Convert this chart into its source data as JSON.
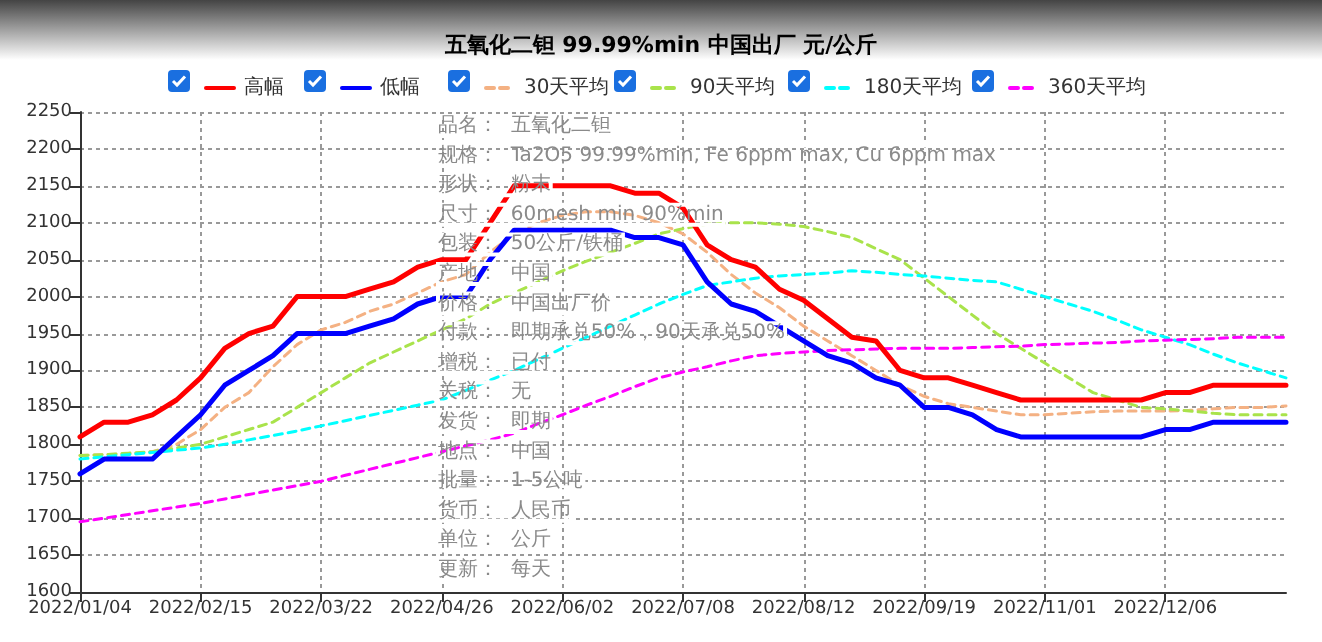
{
  "chart_data": {
    "type": "line",
    "title": "五氧化二钽 99.99%min 中国出厂 元/公斤",
    "categories": [
      "2022/01/04",
      null,
      null,
      null,
      null,
      "2022/02/15",
      null,
      null,
      null,
      null,
      "2022/03/22",
      null,
      null,
      null,
      null,
      "2022/04/26",
      null,
      null,
      null,
      null,
      "2022/06/02",
      null,
      null,
      null,
      null,
      "2022/07/08",
      null,
      null,
      null,
      null,
      "2022/08/12",
      null,
      null,
      null,
      null,
      "2022/09/19",
      null,
      null,
      null,
      null,
      "2022/11/01",
      null,
      null,
      null,
      null,
      "2022/12/06",
      null,
      null,
      null,
      null,
      null
    ],
    "series": [
      {
        "name": "高幅",
        "color": "#ff0000",
        "line_style": "solid",
        "values": [
          1810,
          1830,
          1830,
          1840,
          1860,
          1890,
          1930,
          1950,
          1960,
          2000,
          2000,
          2000,
          2010,
          2020,
          2040,
          2050,
          2050,
          2100,
          2150,
          2150,
          2150,
          2150,
          2150,
          2140,
          2140,
          2120,
          2070,
          2050,
          2040,
          2010,
          1995,
          1970,
          1945,
          1940,
          1900,
          1890,
          1890,
          1880,
          1870,
          1860,
          1860,
          1860,
          1860,
          1860,
          1860,
          1870,
          1870,
          1880,
          1880,
          1880,
          1880
        ]
      },
      {
        "name": "低幅",
        "color": "#0000ff",
        "line_style": "solid",
        "values": [
          1760,
          1780,
          1780,
          1780,
          1810,
          1840,
          1880,
          1900,
          1920,
          1950,
          1950,
          1950,
          1960,
          1970,
          1990,
          2000,
          2000,
          2050,
          2090,
          2090,
          2090,
          2090,
          2090,
          2080,
          2080,
          2070,
          2020,
          1990,
          1980,
          1960,
          1940,
          1920,
          1910,
          1890,
          1880,
          1850,
          1850,
          1840,
          1820,
          1810,
          1810,
          1810,
          1810,
          1810,
          1810,
          1820,
          1820,
          1830,
          1830,
          1830,
          1830
        ]
      },
      {
        "name": "30天平均",
        "color": "#f4b183",
        "line_style": "dashed",
        "values": [
          1785,
          1786,
          1787,
          1790,
          1800,
          1820,
          1850,
          1870,
          1905,
          1935,
          1955,
          1965,
          1980,
          1990,
          2005,
          2020,
          2030,
          2060,
          2085,
          2100,
          2110,
          2115,
          2115,
          2110,
          2100,
          2085,
          2060,
          2030,
          2005,
          1985,
          1960,
          1940,
          1920,
          1900,
          1880,
          1865,
          1855,
          1850,
          1845,
          1840,
          1840,
          1842,
          1844,
          1845,
          1845,
          1845,
          1846,
          1848,
          1850,
          1850,
          1852
        ]
      },
      {
        "name": "90天平均",
        "color": "#a9e34b",
        "line_style": "dashed",
        "values": [
          1785,
          1786,
          1788,
          1790,
          1795,
          1800,
          1810,
          1820,
          1830,
          1850,
          1870,
          1890,
          1910,
          1925,
          1940,
          1955,
          1970,
          1990,
          2005,
          2020,
          2035,
          2048,
          2060,
          2072,
          2085,
          2092,
          2098,
          2100,
          2100,
          2098,
          2095,
          2088,
          2080,
          2065,
          2050,
          2025,
          2000,
          1975,
          1950,
          1930,
          1910,
          1890,
          1870,
          1860,
          1850,
          1848,
          1845,
          1842,
          1840,
          1840,
          1840
        ]
      },
      {
        "name": "180天平均",
        "color": "#00ffff",
        "line_style": "dashed",
        "values": [
          1780,
          1783,
          1786,
          1789,
          1792,
          1795,
          1800,
          1806,
          1812,
          1818,
          1825,
          1832,
          1839,
          1846,
          1853,
          1860,
          1873,
          1887,
          1900,
          1915,
          1930,
          1945,
          1960,
          1975,
          1990,
          2003,
          2015,
          2020,
          2025,
          2028,
          2030,
          2032,
          2035,
          2033,
          2030,
          2028,
          2025,
          2022,
          2020,
          2010,
          2000,
          1990,
          1980,
          1968,
          1955,
          1945,
          1935,
          1922,
          1910,
          1900,
          1890
        ]
      },
      {
        "name": "360天平均",
        "color": "#ff00ff",
        "line_style": "dashed",
        "values": [
          1695,
          1700,
          1705,
          1710,
          1715,
          1720,
          1726,
          1732,
          1738,
          1744,
          1750,
          1758,
          1766,
          1774,
          1782,
          1790,
          1798,
          1806,
          1815,
          1828,
          1840,
          1853,
          1865,
          1878,
          1890,
          1898,
          1905,
          1913,
          1920,
          1923,
          1925,
          1927,
          1928,
          1929,
          1930,
          1930,
          1930,
          1931,
          1932,
          1933,
          1935,
          1936,
          1937,
          1938,
          1940,
          1941,
          1942,
          1943,
          1945,
          1945,
          1945
        ]
      }
    ],
    "ylim": [
      1600,
      2250
    ],
    "yticks": [
      1600,
      1650,
      1700,
      1750,
      1800,
      1850,
      1900,
      1950,
      2000,
      2050,
      2100,
      2150,
      2200,
      2250
    ],
    "grid": true,
    "legend": "top",
    "marker": "none",
    "annotations": [
      "品名：  五氧化二钽",
      "规格：  Ta2O5 99.99%min, Fe 6ppm max, Cu 6ppm max",
      "形状：  粉末",
      "尺寸：  60mesh min 90%min",
      "包装：  50公斤/铁桶",
      "产地：  中国",
      "价格：  中国出厂价",
      "付款：  即期承兑50%，90天承兑50%",
      "增税：  已付",
      "关税：  无",
      "发货：  即期",
      "地点：  中国",
      "批量：  1-5公吨",
      "货币：  人民币",
      "单位：  公斤",
      "更新：  每天"
    ]
  }
}
